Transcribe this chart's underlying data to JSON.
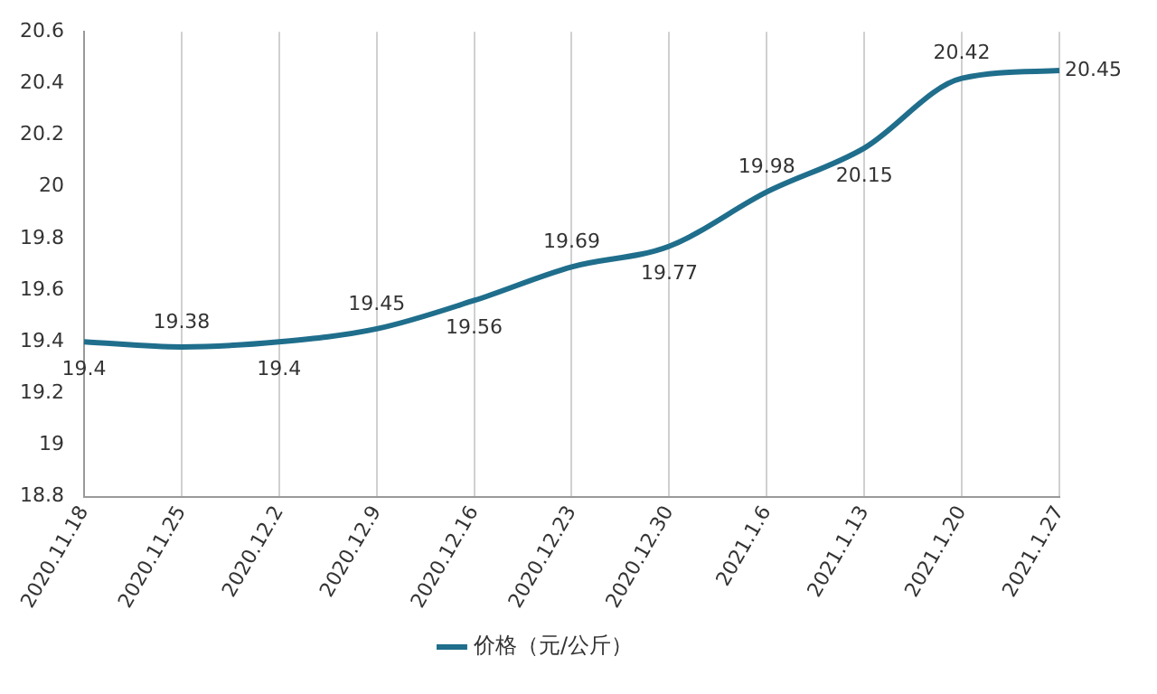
{
  "chart_data": {
    "type": "line",
    "categories": [
      "2020.11.18",
      "2020.11.25",
      "2020.12.2",
      "2020.12.9",
      "2020.12.16",
      "2020.12.23",
      "2020.12.30",
      "2021.1.6",
      "2021.1.13",
      "2021.1.20",
      "2021.1.27"
    ],
    "series": [
      {
        "name": "价格（元/公斤）",
        "color": "#1f6e8c",
        "values": [
          19.4,
          19.38,
          19.4,
          19.45,
          19.56,
          19.69,
          19.77,
          19.98,
          20.15,
          20.42,
          20.45
        ]
      }
    ],
    "ylim": [
      18.8,
      20.6
    ],
    "yticks": [
      18.8,
      19,
      19.2,
      19.4,
      19.6,
      19.8,
      20,
      20.2,
      20.4,
      20.6
    ],
    "grid": "x",
    "legend": "bottom",
    "marker": "none",
    "line_style": "solid",
    "data_labels": true
  }
}
